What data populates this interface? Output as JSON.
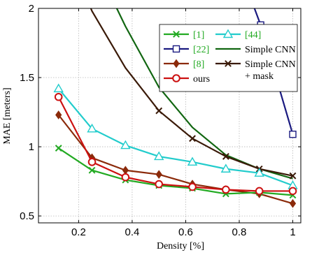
{
  "chart_data": {
    "type": "line",
    "xlabel": "Density [%]",
    "ylabel": "MAE [meters]",
    "xlim": [
      0.05,
      1.03
    ],
    "ylim": [
      0.45,
      2.0
    ],
    "xticks": [
      0.2,
      0.4,
      0.6,
      0.8,
      1
    ],
    "xtick_labels": [
      "0.2",
      "0.4",
      "0.6",
      "0.8",
      "1"
    ],
    "yticks": [
      0.5,
      1,
      1.5,
      2
    ],
    "ytick_labels": [
      "0.5",
      "1",
      "1.5",
      "2"
    ],
    "grid": true,
    "legend_placement": "top-right",
    "series": [
      {
        "name": "[1]",
        "color": "#22aa22",
        "marker": "x",
        "x": [
          0.125,
          0.25,
          0.375,
          0.5,
          0.625,
          0.75,
          0.875,
          1.0
        ],
        "values": [
          0.99,
          0.83,
          0.76,
          0.72,
          0.7,
          0.66,
          0.67,
          0.65
        ]
      },
      {
        "name": "[44]",
        "color": "#22cccc",
        "marker": "triangle",
        "x": [
          0.125,
          0.25,
          0.375,
          0.5,
          0.625,
          0.75,
          0.875,
          1.0
        ],
        "values": [
          1.42,
          1.13,
          1.01,
          0.93,
          0.89,
          0.84,
          0.81,
          0.72
        ]
      },
      {
        "name": "[22]",
        "color": "#1a1a80",
        "marker": "square",
        "x": [
          0.78,
          0.88,
          1.0
        ],
        "values": [
          2.4,
          1.88,
          1.09
        ],
        "marked": [
          false,
          true,
          true
        ]
      },
      {
        "name": "Simple CNN",
        "color": "#116611",
        "marker": "none",
        "x": [
          0.28,
          0.375,
          0.5,
          0.625,
          0.75,
          0.875,
          1.0
        ],
        "values": [
          2.25,
          1.87,
          1.43,
          1.14,
          0.94,
          0.84,
          0.77
        ]
      },
      {
        "name": "[8]",
        "color": "#8b2a0a",
        "marker": "diamond",
        "x": [
          0.125,
          0.25,
          0.375,
          0.5,
          0.625,
          0.75,
          0.875,
          1.0
        ],
        "values": [
          1.23,
          0.92,
          0.83,
          0.8,
          0.73,
          0.69,
          0.66,
          0.59
        ]
      },
      {
        "name": "Simple CNN + mask",
        "legend_lines": [
          "Simple CNN",
          "+ mask"
        ],
        "color": "#3a1a08",
        "marker": "x",
        "x": [
          0.18,
          0.25,
          0.375,
          0.5,
          0.625,
          0.75,
          0.875,
          1.0
        ],
        "values": [
          2.3,
          1.98,
          1.57,
          1.26,
          1.06,
          0.93,
          0.84,
          0.79
        ],
        "marked": [
          false,
          false,
          false,
          true,
          true,
          true,
          true,
          true
        ]
      },
      {
        "name": "ours",
        "color": "#cc1111",
        "marker": "circle",
        "x": [
          0.125,
          0.25,
          0.375,
          0.5,
          0.625,
          0.75,
          0.875,
          1.0
        ],
        "values": [
          1.36,
          0.89,
          0.78,
          0.73,
          0.71,
          0.69,
          0.68,
          0.68
        ]
      }
    ],
    "legend_label_colors": {
      "[1]": "#22aa22",
      "[44]": "#22aa22",
      "[22]": "#22aa22",
      "[8]": "#22aa22",
      "Simple CNN": "#000000",
      "Simple CNN + mask": "#000000",
      "ours": "#000000"
    }
  }
}
